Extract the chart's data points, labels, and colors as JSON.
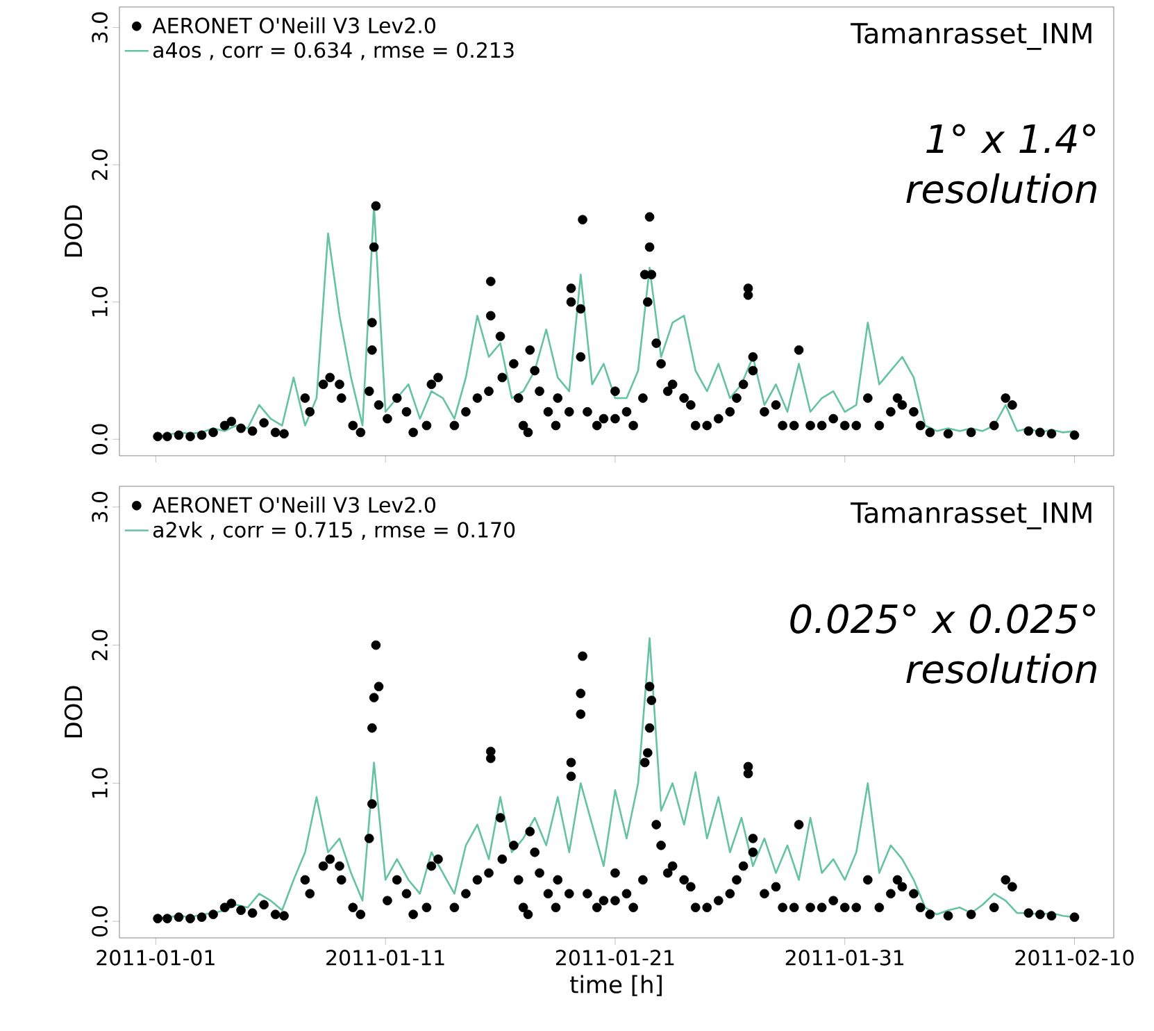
{
  "chart_data": [
    {
      "type": "line",
      "ylabel": "DOD",
      "annotations": [
        "Tamanrasset_INM",
        "1° x 1.4° resolution"
      ],
      "legend": "top left",
      "tick_labels": "y",
      "xlim": [
        "2010-12-30T10:00",
        "2011-02-11T17:00"
      ],
      "xticks": [
        "2011-01-01",
        "2011-01-11",
        "2011-01-21",
        "2011-01-31",
        "2011-02-10"
      ],
      "ylim": [
        -0.12,
        3.15
      ],
      "yticks": [
        {
          "value": 0,
          "label": "0.0"
        },
        {
          "value": 1,
          "label": "1.0"
        },
        {
          "value": 2,
          "label": "2.0"
        },
        {
          "value": 3,
          "label": "3.0"
        }
      ],
      "x": [
        "2011-01-01",
        "2011-01-01T12:00",
        "2011-01-02",
        "2011-01-02T12:00",
        "2011-01-03",
        "2011-01-03T12:00",
        "2011-01-04",
        "2011-01-04T12:00",
        "2011-01-05",
        "2011-01-05T12:00",
        "2011-01-06",
        "2011-01-06T12:00",
        "2011-01-07",
        "2011-01-07T12:00",
        "2011-01-08",
        "2011-01-08T12:00",
        "2011-01-09",
        "2011-01-09T12:00",
        "2011-01-10",
        "2011-01-10T12:00",
        "2011-01-11",
        "2011-01-11T12:00",
        "2011-01-12",
        "2011-01-12T12:00",
        "2011-01-13",
        "2011-01-13T12:00",
        "2011-01-14",
        "2011-01-14T12:00",
        "2011-01-15",
        "2011-01-15T12:00",
        "2011-01-16",
        "2011-01-16T12:00",
        "2011-01-17",
        "2011-01-17T12:00",
        "2011-01-18",
        "2011-01-18T12:00",
        "2011-01-19",
        "2011-01-19T12:00",
        "2011-01-20",
        "2011-01-20T12:00",
        "2011-01-21",
        "2011-01-21T12:00",
        "2011-01-22",
        "2011-01-22T12:00",
        "2011-01-23",
        "2011-01-23T12:00",
        "2011-01-24",
        "2011-01-24T12:00",
        "2011-01-25",
        "2011-01-25T12:00",
        "2011-01-26",
        "2011-01-26T12:00",
        "2011-01-27",
        "2011-01-27T12:00",
        "2011-01-28",
        "2011-01-28T12:00",
        "2011-01-29",
        "2011-01-29T12:00",
        "2011-01-30",
        "2011-01-30T12:00",
        "2011-01-31",
        "2011-01-31T12:00",
        "2011-02-01",
        "2011-02-01T12:00",
        "2011-02-02",
        "2011-02-02T12:00",
        "2011-02-03",
        "2011-02-03T12:00",
        "2011-02-04",
        "2011-02-04T12:00",
        "2011-02-05",
        "2011-02-05T12:00",
        "2011-02-06",
        "2011-02-06T12:00",
        "2011-02-07",
        "2011-02-07T12:00",
        "2011-02-08",
        "2011-02-08T12:00",
        "2011-02-09",
        "2011-02-09T12:00",
        "2011-02-10"
      ],
      "series": [
        {
          "name": "AERONET O'Neill V3 Lev2.0",
          "type": "scatter",
          "marker": "circle",
          "color": "#000000",
          "x": [
            "2011-01-01T02:00",
            "2011-01-01T12:00",
            "2011-01-02",
            "2011-01-02T12:00",
            "2011-01-03",
            "2011-01-03T12:00",
            "2011-01-04",
            "2011-01-04T07:00",
            "2011-01-04T17:00",
            "2011-01-05T05:00",
            "2011-01-05T17:00",
            "2011-01-06T05:00",
            "2011-01-06T14:00",
            "2011-01-07T12:00",
            "2011-01-07T17:00",
            "2011-01-08T07:00",
            "2011-01-08T14:00",
            "2011-01-09",
            "2011-01-09T02:00",
            "2011-01-09T14:00",
            "2011-01-09T22:00",
            "2011-01-10T07:00",
            "2011-01-10T10:00",
            "2011-01-10T10:00",
            "2011-01-10T12:00",
            "2011-01-10T14:00",
            "2011-01-10T17:00",
            "2011-01-11T02:00",
            "2011-01-11T12:00",
            "2011-01-11T22:00",
            "2011-01-12T05:00",
            "2011-01-12T19:00",
            "2011-01-13",
            "2011-01-13T07:00",
            "2011-01-14",
            "2011-01-14T12:00",
            "2011-01-15",
            "2011-01-15T12:00",
            "2011-01-15T14:00",
            "2011-01-15T14:00",
            "2011-01-16",
            "2011-01-16T02:00",
            "2011-01-16T14:00",
            "2011-01-16T19:00",
            "2011-01-17",
            "2011-01-17T05:00",
            "2011-01-17T07:00",
            "2011-01-17T12:00",
            "2011-01-17T17:00",
            "2011-01-18T02:00",
            "2011-01-18T10:00",
            "2011-01-18T12:00",
            "2011-01-19",
            "2011-01-19T02:00",
            "2011-01-19T02:00",
            "2011-01-19T12:00",
            "2011-01-19T12:00",
            "2011-01-19T14:00",
            "2011-01-19T19:00",
            "2011-01-20T05:00",
            "2011-01-20T12:00",
            "2011-01-21",
            "2011-01-21",
            "2011-01-21T12:00",
            "2011-01-21T19:00",
            "2011-01-22T05:00",
            "2011-01-22T07:00",
            "2011-01-22T10:00",
            "2011-01-22T12:00",
            "2011-01-22T12:00",
            "2011-01-22T14:00",
            "2011-01-22T19:00",
            "2011-01-23",
            "2011-01-23T07:00",
            "2011-01-23T12:00",
            "2011-01-24",
            "2011-01-24T07:00",
            "2011-01-24T12:00",
            "2011-01-25",
            "2011-01-25T12:00",
            "2011-01-26",
            "2011-01-26T07:00",
            "2011-01-26T14:00",
            "2011-01-26T19:00",
            "2011-01-26T19:00",
            "2011-01-27",
            "2011-01-27",
            "2011-01-27T12:00",
            "2011-01-28",
            "2011-01-28T07:00",
            "2011-01-28T19:00",
            "2011-01-29",
            "2011-01-29T12:00",
            "2011-01-30",
            "2011-01-30T12:00",
            "2011-01-31",
            "2011-01-31T12:00",
            "2011-02-01",
            "2011-02-01T12:00",
            "2011-02-02",
            "2011-02-02T07:00",
            "2011-02-02T12:00",
            "2011-02-03",
            "2011-02-03T07:00",
            "2011-02-03T17:00",
            "2011-02-04T12:00",
            "2011-02-05T12:00",
            "2011-02-06T12:00",
            "2011-02-07",
            "2011-02-07T07:00",
            "2011-02-08",
            "2011-02-08T12:00",
            "2011-02-09",
            "2011-02-10"
          ],
          "values": [
            0.02,
            0.02,
            0.03,
            0.02,
            0.03,
            0.05,
            0.1,
            0.13,
            0.08,
            0.06,
            0.12,
            0.05,
            0.04,
            0.3,
            0.2,
            0.4,
            0.45,
            0.4,
            0.3,
            0.1,
            0.05,
            0.35,
            0.65,
            0.85,
            1.4,
            1.7,
            0.25,
            0.15,
            0.3,
            0.2,
            0.05,
            0.1,
            0.4,
            0.45,
            0.1,
            0.2,
            0.3,
            0.35,
            1.15,
            0.9,
            0.75,
            0.45,
            0.55,
            0.3,
            0.1,
            0.05,
            0.65,
            0.5,
            0.35,
            0.2,
            0.1,
            0.3,
            0.2,
            1.1,
            1.0,
            0.6,
            0.95,
            1.6,
            0.2,
            0.1,
            0.15,
            0.35,
            0.15,
            0.2,
            0.1,
            0.3,
            1.2,
            1.0,
            1.4,
            1.62,
            1.2,
            0.7,
            0.55,
            0.35,
            0.4,
            0.3,
            0.25,
            0.1,
            0.1,
            0.15,
            0.2,
            0.3,
            0.4,
            1.05,
            1.1,
            0.6,
            0.5,
            0.2,
            0.25,
            0.1,
            0.1,
            0.65,
            0.1,
            0.1,
            0.15,
            0.1,
            0.1,
            0.3,
            0.1,
            0.2,
            0.3,
            0.25,
            0.2,
            0.1,
            0.05,
            0.04,
            0.05,
            0.1,
            0.3,
            0.25,
            0.06,
            0.05,
            0.04,
            0.03
          ]
        },
        {
          "name": "a4os , corr = 0.634 , rmse = 0.213",
          "line_style": "solid",
          "color": "#66c2a5",
          "values": [
            0.02,
            0.03,
            0.05,
            0.04,
            0.05,
            0.08,
            0.06,
            0.1,
            0.08,
            0.25,
            0.15,
            0.1,
            0.45,
            0.1,
            0.3,
            1.5,
            0.9,
            0.45,
            0.1,
            1.7,
            0.2,
            0.3,
            0.4,
            0.15,
            0.35,
            0.3,
            0.15,
            0.45,
            0.9,
            0.6,
            0.7,
            0.3,
            0.35,
            0.5,
            0.8,
            0.45,
            0.35,
            1.2,
            0.4,
            0.55,
            0.3,
            0.3,
            0.5,
            1.25,
            0.6,
            0.85,
            0.9,
            0.5,
            0.35,
            0.55,
            0.3,
            0.4,
            0.6,
            0.25,
            0.4,
            0.2,
            0.55,
            0.2,
            0.3,
            0.35,
            0.2,
            0.25,
            0.85,
            0.4,
            0.5,
            0.6,
            0.45,
            0.1,
            0.06,
            0.08,
            0.06,
            0.08,
            0.06,
            0.1,
            0.25,
            0.06,
            0.08,
            0.05,
            0.07,
            0.05,
            0.06
          ]
        }
      ]
    },
    {
      "type": "line",
      "xlabel": "time [h]",
      "ylabel": "DOD",
      "annotations": [
        "Tamanrasset_INM",
        "0.025° x 0.025° resolution"
      ],
      "legend": "top left",
      "xlim": [
        "2010-12-30T10:00",
        "2011-02-11T17:00"
      ],
      "xticks": [
        "2011-01-01",
        "2011-01-11",
        "2011-01-21",
        "2011-01-31",
        "2011-02-10"
      ],
      "ylim": [
        -0.12,
        3.15
      ],
      "yticks": [
        {
          "value": 0,
          "label": "0.0"
        },
        {
          "value": 1,
          "label": "1.0"
        },
        {
          "value": 2,
          "label": "2.0"
        },
        {
          "value": 3,
          "label": "3.0"
        }
      ],
      "x": [
        "2011-01-01",
        "2011-01-01T12:00",
        "2011-01-02",
        "2011-01-02T12:00",
        "2011-01-03",
        "2011-01-03T12:00",
        "2011-01-04",
        "2011-01-04T12:00",
        "2011-01-05",
        "2011-01-05T12:00",
        "2011-01-06",
        "2011-01-06T12:00",
        "2011-01-07",
        "2011-01-07T12:00",
        "2011-01-08",
        "2011-01-08T12:00",
        "2011-01-09",
        "2011-01-09T12:00",
        "2011-01-10",
        "2011-01-10T12:00",
        "2011-01-11",
        "2011-01-11T12:00",
        "2011-01-12",
        "2011-01-12T12:00",
        "2011-01-13",
        "2011-01-13T12:00",
        "2011-01-14",
        "2011-01-14T12:00",
        "2011-01-15",
        "2011-01-15T12:00",
        "2011-01-16",
        "2011-01-16T12:00",
        "2011-01-17",
        "2011-01-17T12:00",
        "2011-01-18",
        "2011-01-18T12:00",
        "2011-01-19",
        "2011-01-19T12:00",
        "2011-01-20",
        "2011-01-20T12:00",
        "2011-01-21",
        "2011-01-21T12:00",
        "2011-01-22",
        "2011-01-22T12:00",
        "2011-01-23",
        "2011-01-23T12:00",
        "2011-01-24",
        "2011-01-24T12:00",
        "2011-01-25",
        "2011-01-25T12:00",
        "2011-01-26",
        "2011-01-26T12:00",
        "2011-01-27",
        "2011-01-27T12:00",
        "2011-01-28",
        "2011-01-28T12:00",
        "2011-01-29",
        "2011-01-29T12:00",
        "2011-01-30",
        "2011-01-30T12:00",
        "2011-01-31",
        "2011-01-31T12:00",
        "2011-02-01",
        "2011-02-01T12:00",
        "2011-02-02",
        "2011-02-02T12:00",
        "2011-02-03",
        "2011-02-03T12:00",
        "2011-02-04",
        "2011-02-04T12:00",
        "2011-02-05",
        "2011-02-05T12:00",
        "2011-02-06",
        "2011-02-06T12:00",
        "2011-02-07",
        "2011-02-07T12:00",
        "2011-02-08",
        "2011-02-08T12:00",
        "2011-02-09",
        "2011-02-09T12:00",
        "2011-02-10"
      ],
      "series": [
        {
          "name": "AERONET O'Neill V3 Lev2.0",
          "type": "scatter",
          "marker": "circle",
          "color": "#000000",
          "x": [
            "2011-01-01T02:00",
            "2011-01-01T12:00",
            "2011-01-02",
            "2011-01-02T12:00",
            "2011-01-03",
            "2011-01-03T12:00",
            "2011-01-04",
            "2011-01-04T07:00",
            "2011-01-04T17:00",
            "2011-01-05T05:00",
            "2011-01-05T17:00",
            "2011-01-06T05:00",
            "2011-01-06T14:00",
            "2011-01-07T12:00",
            "2011-01-07T17:00",
            "2011-01-08T07:00",
            "2011-01-08T14:00",
            "2011-01-09",
            "2011-01-09T02:00",
            "2011-01-09T14:00",
            "2011-01-09T22:00",
            "2011-01-10T07:00",
            "2011-01-10T10:00",
            "2011-01-10T10:00",
            "2011-01-10T12:00",
            "2011-01-10T14:00",
            "2011-01-10T17:00",
            "2011-01-11T02:00",
            "2011-01-11T12:00",
            "2011-01-11T22:00",
            "2011-01-12T05:00",
            "2011-01-12T19:00",
            "2011-01-13",
            "2011-01-13T07:00",
            "2011-01-14",
            "2011-01-14T12:00",
            "2011-01-15",
            "2011-01-15T12:00",
            "2011-01-15T14:00",
            "2011-01-15T14:00",
            "2011-01-16",
            "2011-01-16T02:00",
            "2011-01-16T14:00",
            "2011-01-16T19:00",
            "2011-01-17",
            "2011-01-17T05:00",
            "2011-01-17T07:00",
            "2011-01-17T12:00",
            "2011-01-17T17:00",
            "2011-01-18T02:00",
            "2011-01-18T10:00",
            "2011-01-18T12:00",
            "2011-01-19",
            "2011-01-19T02:00",
            "2011-01-19T02:00",
            "2011-01-19T12:00",
            "2011-01-19T12:00",
            "2011-01-19T14:00",
            "2011-01-19T19:00",
            "2011-01-20T05:00",
            "2011-01-20T12:00",
            "2011-01-21",
            "2011-01-21",
            "2011-01-21T12:00",
            "2011-01-21T19:00",
            "2011-01-22T05:00",
            "2011-01-22T07:00",
            "2011-01-22T10:00",
            "2011-01-22T12:00",
            "2011-01-22T12:00",
            "2011-01-22T14:00",
            "2011-01-22T19:00",
            "2011-01-23",
            "2011-01-23T07:00",
            "2011-01-23T12:00",
            "2011-01-24",
            "2011-01-24T07:00",
            "2011-01-24T12:00",
            "2011-01-25",
            "2011-01-25T12:00",
            "2011-01-26",
            "2011-01-26T07:00",
            "2011-01-26T14:00",
            "2011-01-26T19:00",
            "2011-01-26T19:00",
            "2011-01-27",
            "2011-01-27",
            "2011-01-27T12:00",
            "2011-01-28",
            "2011-01-28T07:00",
            "2011-01-28T19:00",
            "2011-01-29",
            "2011-01-29T12:00",
            "2011-01-30",
            "2011-01-30T12:00",
            "2011-01-31",
            "2011-01-31T12:00",
            "2011-02-01",
            "2011-02-01T12:00",
            "2011-02-02",
            "2011-02-02T07:00",
            "2011-02-02T12:00",
            "2011-02-03",
            "2011-02-03T07:00",
            "2011-02-03T17:00",
            "2011-02-04T12:00",
            "2011-02-05T12:00",
            "2011-02-06T12:00",
            "2011-02-07",
            "2011-02-07T07:00",
            "2011-02-08",
            "2011-02-08T12:00",
            "2011-02-09",
            "2011-02-10"
          ],
          "values": [
            0.02,
            0.02,
            0.03,
            0.02,
            0.03,
            0.05,
            0.1,
            0.13,
            0.08,
            0.06,
            0.12,
            0.05,
            0.04,
            0.3,
            0.2,
            0.4,
            0.45,
            0.4,
            0.3,
            0.1,
            0.05,
            0.6,
            0.85,
            1.4,
            1.62,
            2.0,
            1.7,
            0.15,
            0.3,
            0.2,
            0.05,
            0.1,
            0.4,
            0.45,
            0.1,
            0.2,
            0.3,
            0.35,
            1.23,
            1.18,
            0.75,
            0.45,
            0.55,
            0.3,
            0.1,
            0.05,
            0.65,
            0.5,
            0.35,
            0.2,
            0.1,
            0.3,
            0.2,
            1.15,
            1.05,
            1.65,
            1.5,
            1.92,
            0.2,
            0.1,
            0.15,
            0.35,
            0.15,
            0.2,
            0.1,
            0.3,
            1.15,
            1.22,
            1.4,
            1.7,
            1.6,
            0.7,
            0.55,
            0.35,
            0.4,
            0.3,
            0.25,
            0.1,
            0.1,
            0.15,
            0.2,
            0.3,
            0.4,
            1.07,
            1.12,
            0.6,
            0.5,
            0.2,
            0.25,
            0.1,
            0.1,
            0.7,
            0.1,
            0.1,
            0.15,
            0.1,
            0.1,
            0.3,
            0.1,
            0.2,
            0.3,
            0.25,
            0.2,
            0.1,
            0.05,
            0.04,
            0.05,
            0.1,
            0.3,
            0.25,
            0.06,
            0.05,
            0.04,
            0.03
          ]
        },
        {
          "name": "a2vk , corr = 0.715 , rmse = 0.170",
          "line_style": "solid",
          "color": "#66c2a5",
          "values": [
            0.02,
            0.03,
            0.04,
            0.03,
            0.05,
            0.06,
            0.08,
            0.12,
            0.1,
            0.2,
            0.15,
            0.08,
            0.3,
            0.5,
            0.9,
            0.5,
            0.6,
            0.35,
            0.15,
            1.15,
            0.3,
            0.45,
            0.3,
            0.2,
            0.5,
            0.35,
            0.2,
            0.55,
            0.7,
            0.45,
            0.9,
            0.5,
            0.6,
            0.75,
            0.55,
            0.9,
            0.5,
            1.0,
            0.7,
            0.4,
            0.95,
            0.6,
            1.0,
            2.05,
            0.8,
            1.0,
            0.7,
            1.08,
            0.6,
            0.9,
            0.5,
            0.75,
            0.4,
            0.6,
            0.35,
            0.55,
            0.3,
            0.75,
            0.35,
            0.45,
            0.3,
            0.5,
            1.0,
            0.35,
            0.55,
            0.45,
            0.3,
            0.1,
            0.05,
            0.08,
            0.1,
            0.06,
            0.12,
            0.2,
            0.15,
            0.06,
            0.06,
            0.05,
            0.06,
            0.04,
            0.03
          ]
        }
      ]
    }
  ]
}
